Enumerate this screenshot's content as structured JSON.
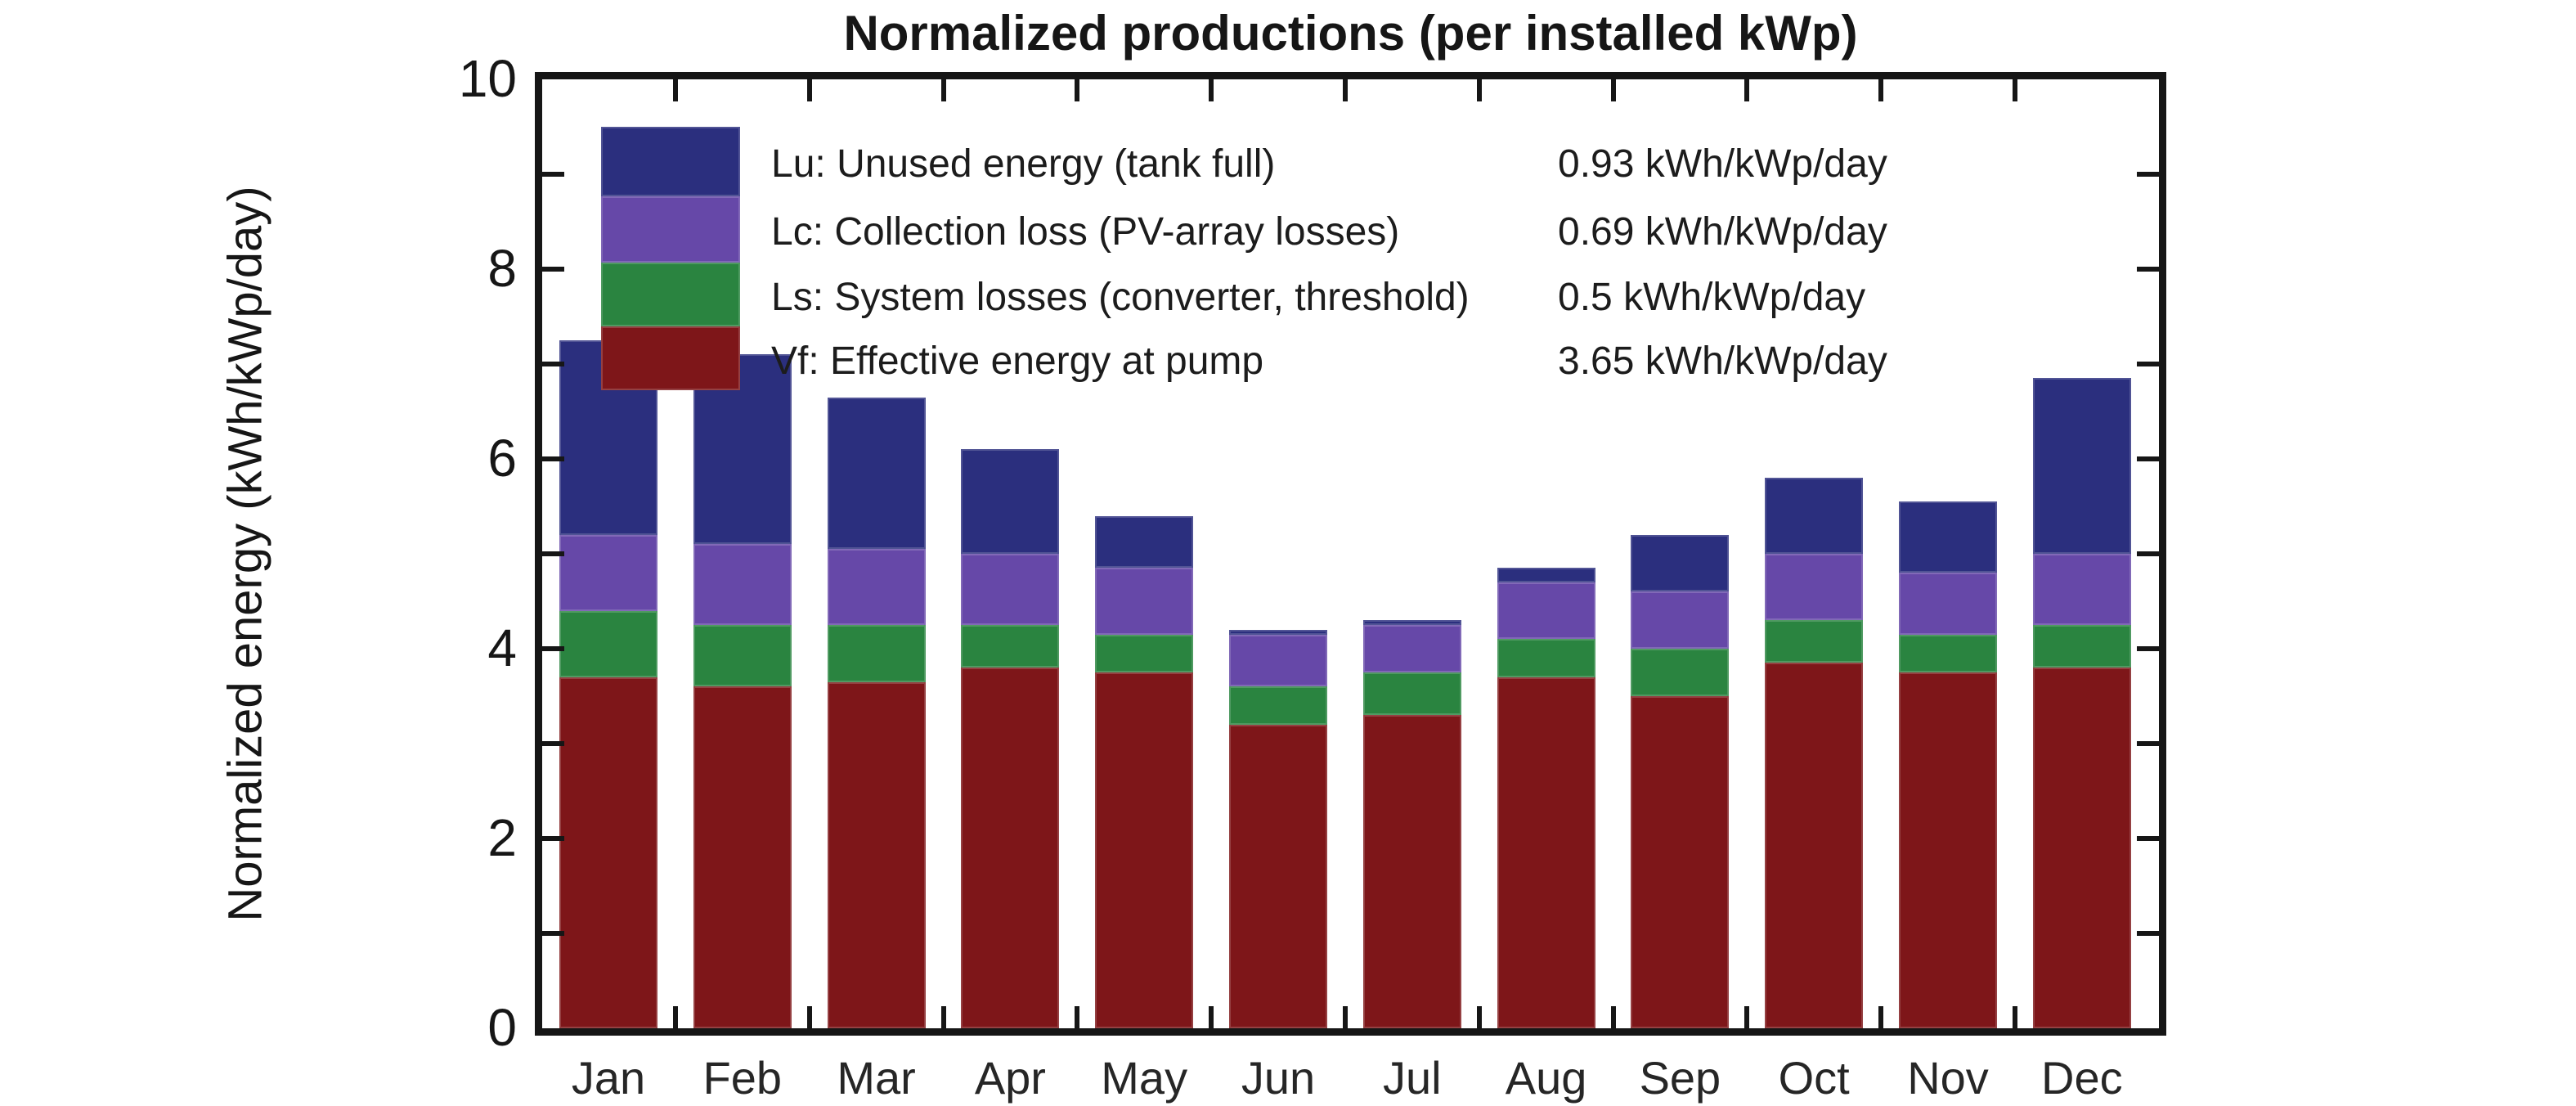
{
  "title": "Normalized productions (per installed kWp)",
  "axes": {
    "y": {
      "label": "Normalized energy (kWh/kWp/day)",
      "min": 0,
      "max": 10,
      "tick_step": 1,
      "labeled_ticks": [
        "0",
        "2",
        "4",
        "6",
        "8",
        "10"
      ],
      "labeled_tick_values": [
        0,
        2,
        4,
        6,
        8,
        10
      ]
    },
    "x": {
      "tick_positions": "between-categories"
    }
  },
  "colors": {
    "lu_blue": "#2b2f7e",
    "lc_purple": "#6648a8",
    "ls_green": "#2a8440",
    "yf_red": "#7e1619",
    "frame": "#161616",
    "text": "#1f1f1f"
  },
  "legend": {
    "entries": [
      {
        "key": "Lu",
        "label": "Lu: Unused energy (tank full)",
        "value": "0.93 kWh/kWp/day",
        "color_key": "lu_blue"
      },
      {
        "key": "Lc",
        "label": "Lc: Collection loss (PV-array losses)",
        "value": "0.69 kWh/kWp/day",
        "color_key": "lc_purple"
      },
      {
        "key": "Ls",
        "label": "Ls: System losses (converter, threshold)",
        "value": "0.5 kWh/kWp/day",
        "color_key": "ls_green"
      },
      {
        "key": "Vf",
        "label": "Vf: Effective energy at pump",
        "value": "3.65 kWh/kWp/day",
        "color_key": "yf_red"
      }
    ],
    "swatch_stack": [
      {
        "color_key": "lu_blue",
        "from": 8.77,
        "to": 9.5
      },
      {
        "color_key": "lc_purple",
        "from": 8.07,
        "to": 8.77
      },
      {
        "color_key": "ls_green",
        "from": 7.4,
        "to": 8.07
      },
      {
        "color_key": "yf_red",
        "from": 6.72,
        "to": 7.4
      }
    ]
  },
  "chart_data": {
    "type": "bar",
    "stacked": true,
    "title": "Normalized productions (per installed kWp)",
    "ylabel": "Normalized energy (kWh/kWp/day)",
    "ylim": [
      0,
      10
    ],
    "grid": false,
    "legend_position": "upper-left-inside",
    "categories": [
      "Jan",
      "Feb",
      "Mar",
      "Apr",
      "May",
      "Jun",
      "Jul",
      "Aug",
      "Sep",
      "Oct",
      "Nov",
      "Dec"
    ],
    "series": [
      {
        "name": "Vf: Effective energy at pump",
        "color_key": "yf_red",
        "values": [
          3.7,
          3.6,
          3.65,
          3.8,
          3.75,
          3.2,
          3.3,
          3.7,
          3.5,
          3.85,
          3.75,
          3.8
        ]
      },
      {
        "name": "Ls: System losses (converter, threshold)",
        "color_key": "ls_green",
        "values": [
          0.7,
          0.65,
          0.6,
          0.45,
          0.4,
          0.4,
          0.45,
          0.4,
          0.5,
          0.45,
          0.4,
          0.45
        ]
      },
      {
        "name": "Lc: Collection loss (PV-array losses)",
        "color_key": "lc_purple",
        "values": [
          0.8,
          0.85,
          0.8,
          0.75,
          0.7,
          0.55,
          0.5,
          0.6,
          0.6,
          0.7,
          0.65,
          0.75
        ]
      },
      {
        "name": "Lu: Unused energy (tank full)",
        "color_key": "lu_blue",
        "values": [
          2.05,
          2.0,
          1.6,
          1.1,
          0.55,
          0.05,
          0.05,
          0.15,
          0.6,
          0.8,
          0.75,
          1.85
        ]
      }
    ],
    "bar_totals": [
      7.25,
      7.1,
      6.65,
      6.1,
      5.4,
      4.2,
      4.3,
      4.85,
      5.2,
      5.8,
      5.55,
      6.85
    ]
  }
}
